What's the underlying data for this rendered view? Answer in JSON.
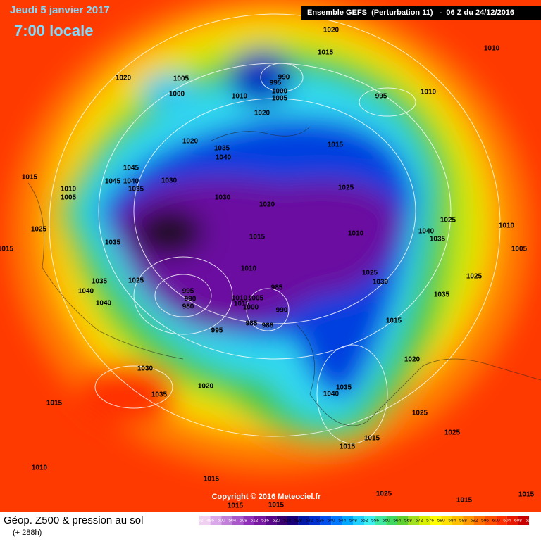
{
  "header": {
    "date": "Jeudi 5 janvier 2017",
    "time": "7:00 locale",
    "model": "Ensemble GEFS  (Perturbation 11)   -  06 Z du 24/12/2016"
  },
  "footer": {
    "title": "Géop. Z500 & pression au sol",
    "lead": "(+ 288h)",
    "copyright": "Copyright © 2016 Meteociel.fr"
  },
  "colorbar": {
    "ticks": [
      492,
      496,
      500,
      504,
      508,
      512,
      516,
      520,
      524,
      528,
      532,
      536,
      540,
      544,
      548,
      552,
      556,
      560,
      564,
      568,
      572,
      576,
      580,
      584,
      588,
      592,
      596,
      600,
      604,
      608,
      612
    ],
    "colors": [
      "#f0d0f0",
      "#d8a8e8",
      "#c080d8",
      "#a858c8",
      "#9030b8",
      "#7818a0",
      "#580888",
      "#3a0070",
      "#1a0078",
      "#0018a8",
      "#0030d0",
      "#0050f0",
      "#0078ff",
      "#00a8ff",
      "#20d0ff",
      "#40f0f0",
      "#40e8a0",
      "#40d860",
      "#60d030",
      "#a0e020",
      "#d8f000",
      "#ffff00",
      "#ffe000",
      "#ffc000",
      "#ff9800",
      "#ff7000",
      "#ff5000",
      "#ff3000",
      "#e81800",
      "#c80000"
    ]
  },
  "isobar_labels": [
    "1020",
    "1015",
    "1010",
    "1020",
    "1005",
    "990",
    "995",
    "1000",
    "1010",
    "1000",
    "1005",
    "995",
    "1010",
    "1020",
    "1020",
    "1035",
    "1040",
    "1015",
    "1015",
    "1045",
    "1045",
    "1040",
    "1030",
    "1010",
    "1005",
    "1035",
    "1025",
    "1030",
    "1020",
    "1025",
    "1040",
    "1025",
    "1010",
    "1015",
    "1010",
    "1035",
    "1035",
    "1005",
    "1015",
    "1010",
    "1025",
    "1030",
    "1035",
    "1025",
    "1025",
    "985",
    "995",
    "990",
    "980",
    "1040",
    "1035",
    "1040",
    "1010",
    "1005",
    "1015",
    "1000",
    "990",
    "985",
    "988",
    "1015",
    "995",
    "1020",
    "1030",
    "1035",
    "1040",
    "1035",
    "1020",
    "1015",
    "1025",
    "1015",
    "1015",
    "1025",
    "1010",
    "1015",
    "1025",
    "1015",
    "1015",
    "1015",
    "1015"
  ]
}
